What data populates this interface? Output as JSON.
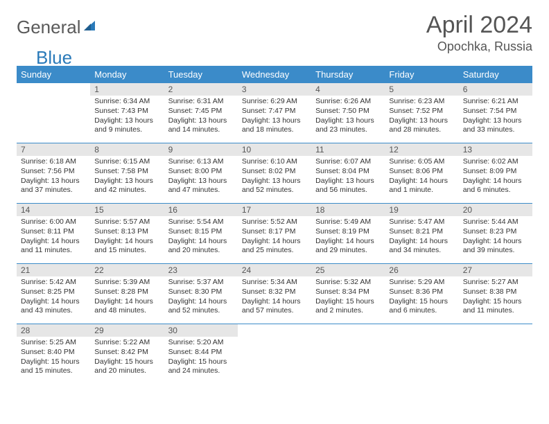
{
  "logo": {
    "text1": "General",
    "text2": "Blue"
  },
  "header": {
    "month_title": "April 2024",
    "location": "Opochka, Russia"
  },
  "colors": {
    "header_bg": "#3b8bc9",
    "header_text": "#ffffff",
    "daynum_bg": "#e6e6e6",
    "cell_border": "#3b8bc9",
    "logo_gray": "#5a5a5a",
    "logo_blue": "#2a7ab9"
  },
  "day_headers": [
    "Sunday",
    "Monday",
    "Tuesday",
    "Wednesday",
    "Thursday",
    "Friday",
    "Saturday"
  ],
  "weeks": [
    [
      {
        "day": "",
        "sunrise": "",
        "sunset": "",
        "daylight": ""
      },
      {
        "day": "1",
        "sunrise": "Sunrise: 6:34 AM",
        "sunset": "Sunset: 7:43 PM",
        "daylight": "Daylight: 13 hours and 9 minutes."
      },
      {
        "day": "2",
        "sunrise": "Sunrise: 6:31 AM",
        "sunset": "Sunset: 7:45 PM",
        "daylight": "Daylight: 13 hours and 14 minutes."
      },
      {
        "day": "3",
        "sunrise": "Sunrise: 6:29 AM",
        "sunset": "Sunset: 7:47 PM",
        "daylight": "Daylight: 13 hours and 18 minutes."
      },
      {
        "day": "4",
        "sunrise": "Sunrise: 6:26 AM",
        "sunset": "Sunset: 7:50 PM",
        "daylight": "Daylight: 13 hours and 23 minutes."
      },
      {
        "day": "5",
        "sunrise": "Sunrise: 6:23 AM",
        "sunset": "Sunset: 7:52 PM",
        "daylight": "Daylight: 13 hours and 28 minutes."
      },
      {
        "day": "6",
        "sunrise": "Sunrise: 6:21 AM",
        "sunset": "Sunset: 7:54 PM",
        "daylight": "Daylight: 13 hours and 33 minutes."
      }
    ],
    [
      {
        "day": "7",
        "sunrise": "Sunrise: 6:18 AM",
        "sunset": "Sunset: 7:56 PM",
        "daylight": "Daylight: 13 hours and 37 minutes."
      },
      {
        "day": "8",
        "sunrise": "Sunrise: 6:15 AM",
        "sunset": "Sunset: 7:58 PM",
        "daylight": "Daylight: 13 hours and 42 minutes."
      },
      {
        "day": "9",
        "sunrise": "Sunrise: 6:13 AM",
        "sunset": "Sunset: 8:00 PM",
        "daylight": "Daylight: 13 hours and 47 minutes."
      },
      {
        "day": "10",
        "sunrise": "Sunrise: 6:10 AM",
        "sunset": "Sunset: 8:02 PM",
        "daylight": "Daylight: 13 hours and 52 minutes."
      },
      {
        "day": "11",
        "sunrise": "Sunrise: 6:07 AM",
        "sunset": "Sunset: 8:04 PM",
        "daylight": "Daylight: 13 hours and 56 minutes."
      },
      {
        "day": "12",
        "sunrise": "Sunrise: 6:05 AM",
        "sunset": "Sunset: 8:06 PM",
        "daylight": "Daylight: 14 hours and 1 minute."
      },
      {
        "day": "13",
        "sunrise": "Sunrise: 6:02 AM",
        "sunset": "Sunset: 8:09 PM",
        "daylight": "Daylight: 14 hours and 6 minutes."
      }
    ],
    [
      {
        "day": "14",
        "sunrise": "Sunrise: 6:00 AM",
        "sunset": "Sunset: 8:11 PM",
        "daylight": "Daylight: 14 hours and 11 minutes."
      },
      {
        "day": "15",
        "sunrise": "Sunrise: 5:57 AM",
        "sunset": "Sunset: 8:13 PM",
        "daylight": "Daylight: 14 hours and 15 minutes."
      },
      {
        "day": "16",
        "sunrise": "Sunrise: 5:54 AM",
        "sunset": "Sunset: 8:15 PM",
        "daylight": "Daylight: 14 hours and 20 minutes."
      },
      {
        "day": "17",
        "sunrise": "Sunrise: 5:52 AM",
        "sunset": "Sunset: 8:17 PM",
        "daylight": "Daylight: 14 hours and 25 minutes."
      },
      {
        "day": "18",
        "sunrise": "Sunrise: 5:49 AM",
        "sunset": "Sunset: 8:19 PM",
        "daylight": "Daylight: 14 hours and 29 minutes."
      },
      {
        "day": "19",
        "sunrise": "Sunrise: 5:47 AM",
        "sunset": "Sunset: 8:21 PM",
        "daylight": "Daylight: 14 hours and 34 minutes."
      },
      {
        "day": "20",
        "sunrise": "Sunrise: 5:44 AM",
        "sunset": "Sunset: 8:23 PM",
        "daylight": "Daylight: 14 hours and 39 minutes."
      }
    ],
    [
      {
        "day": "21",
        "sunrise": "Sunrise: 5:42 AM",
        "sunset": "Sunset: 8:25 PM",
        "daylight": "Daylight: 14 hours and 43 minutes."
      },
      {
        "day": "22",
        "sunrise": "Sunrise: 5:39 AM",
        "sunset": "Sunset: 8:28 PM",
        "daylight": "Daylight: 14 hours and 48 minutes."
      },
      {
        "day": "23",
        "sunrise": "Sunrise: 5:37 AM",
        "sunset": "Sunset: 8:30 PM",
        "daylight": "Daylight: 14 hours and 52 minutes."
      },
      {
        "day": "24",
        "sunrise": "Sunrise: 5:34 AM",
        "sunset": "Sunset: 8:32 PM",
        "daylight": "Daylight: 14 hours and 57 minutes."
      },
      {
        "day": "25",
        "sunrise": "Sunrise: 5:32 AM",
        "sunset": "Sunset: 8:34 PM",
        "daylight": "Daylight: 15 hours and 2 minutes."
      },
      {
        "day": "26",
        "sunrise": "Sunrise: 5:29 AM",
        "sunset": "Sunset: 8:36 PM",
        "daylight": "Daylight: 15 hours and 6 minutes."
      },
      {
        "day": "27",
        "sunrise": "Sunrise: 5:27 AM",
        "sunset": "Sunset: 8:38 PM",
        "daylight": "Daylight: 15 hours and 11 minutes."
      }
    ],
    [
      {
        "day": "28",
        "sunrise": "Sunrise: 5:25 AM",
        "sunset": "Sunset: 8:40 PM",
        "daylight": "Daylight: 15 hours and 15 minutes."
      },
      {
        "day": "29",
        "sunrise": "Sunrise: 5:22 AM",
        "sunset": "Sunset: 8:42 PM",
        "daylight": "Daylight: 15 hours and 20 minutes."
      },
      {
        "day": "30",
        "sunrise": "Sunrise: 5:20 AM",
        "sunset": "Sunset: 8:44 PM",
        "daylight": "Daylight: 15 hours and 24 minutes."
      },
      {
        "day": "",
        "sunrise": "",
        "sunset": "",
        "daylight": ""
      },
      {
        "day": "",
        "sunrise": "",
        "sunset": "",
        "daylight": ""
      },
      {
        "day": "",
        "sunrise": "",
        "sunset": "",
        "daylight": ""
      },
      {
        "day": "",
        "sunrise": "",
        "sunset": "",
        "daylight": ""
      }
    ]
  ]
}
